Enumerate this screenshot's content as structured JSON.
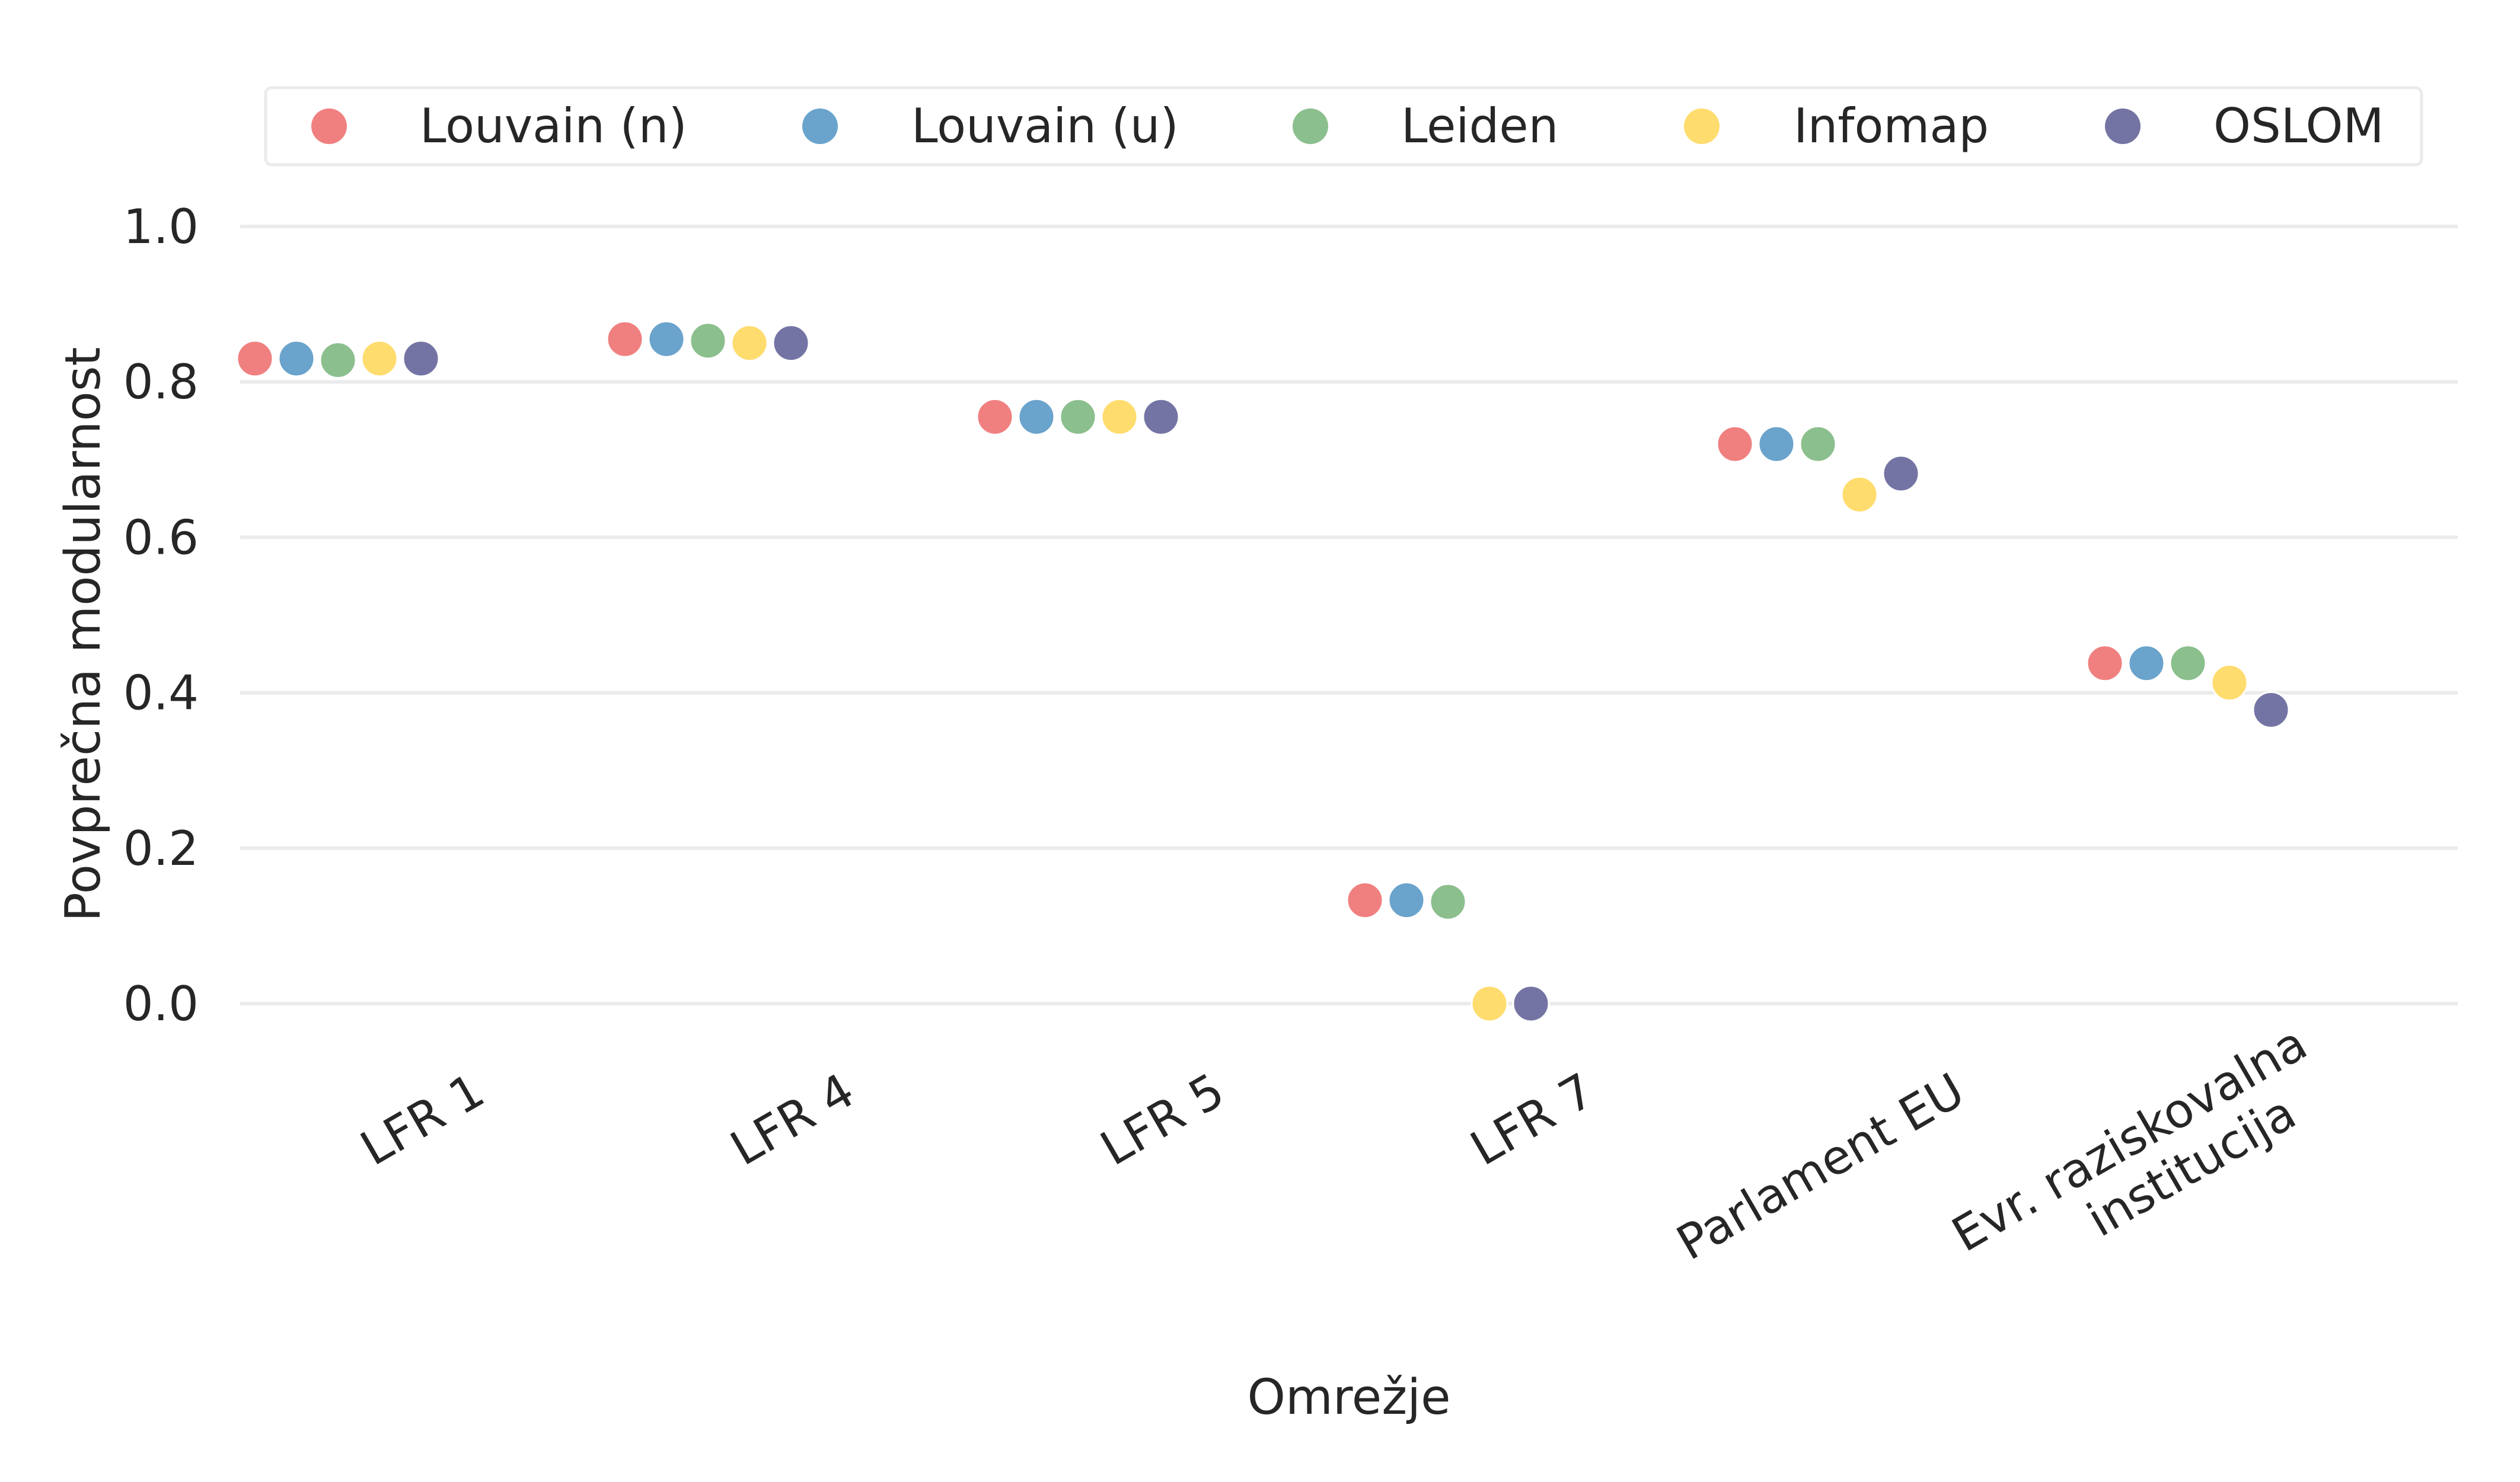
{
  "chart_data": {
    "type": "scatter",
    "xlabel": "Omrežje",
    "ylabel": "Povprečna modularnost",
    "ylim": [
      -0.05,
      1.05
    ],
    "yticks": [
      "0.0",
      "0.2",
      "0.4",
      "0.6",
      "0.8",
      "1.0"
    ],
    "grid": true,
    "legend_position": "top",
    "categories": [
      [
        "LFR 1"
      ],
      [
        "LFR 4"
      ],
      [
        "LFR 5"
      ],
      [
        "LFR 7"
      ],
      [
        "Parlament EU"
      ],
      [
        "Evr. raziskovalna",
        "institucija"
      ]
    ],
    "series": [
      {
        "name": "Louvain (n)",
        "color": "#f08080",
        "values": [
          0.83,
          0.855,
          0.755,
          0.133,
          0.72,
          0.438
        ]
      },
      {
        "name": "Louvain (u)",
        "color": "#6aa3cc",
        "values": [
          0.83,
          0.855,
          0.755,
          0.133,
          0.72,
          0.438
        ]
      },
      {
        "name": "Leiden",
        "color": "#8bbf8d",
        "values": [
          0.828,
          0.853,
          0.755,
          0.131,
          0.72,
          0.438
        ]
      },
      {
        "name": "Infomap",
        "color": "#ffdc6e",
        "values": [
          0.83,
          0.85,
          0.755,
          0.0,
          0.655,
          0.413
        ]
      },
      {
        "name": "OSLOM",
        "color": "#7474a4",
        "values": [
          0.83,
          0.85,
          0.755,
          0.0,
          0.682,
          0.378
        ]
      }
    ]
  }
}
